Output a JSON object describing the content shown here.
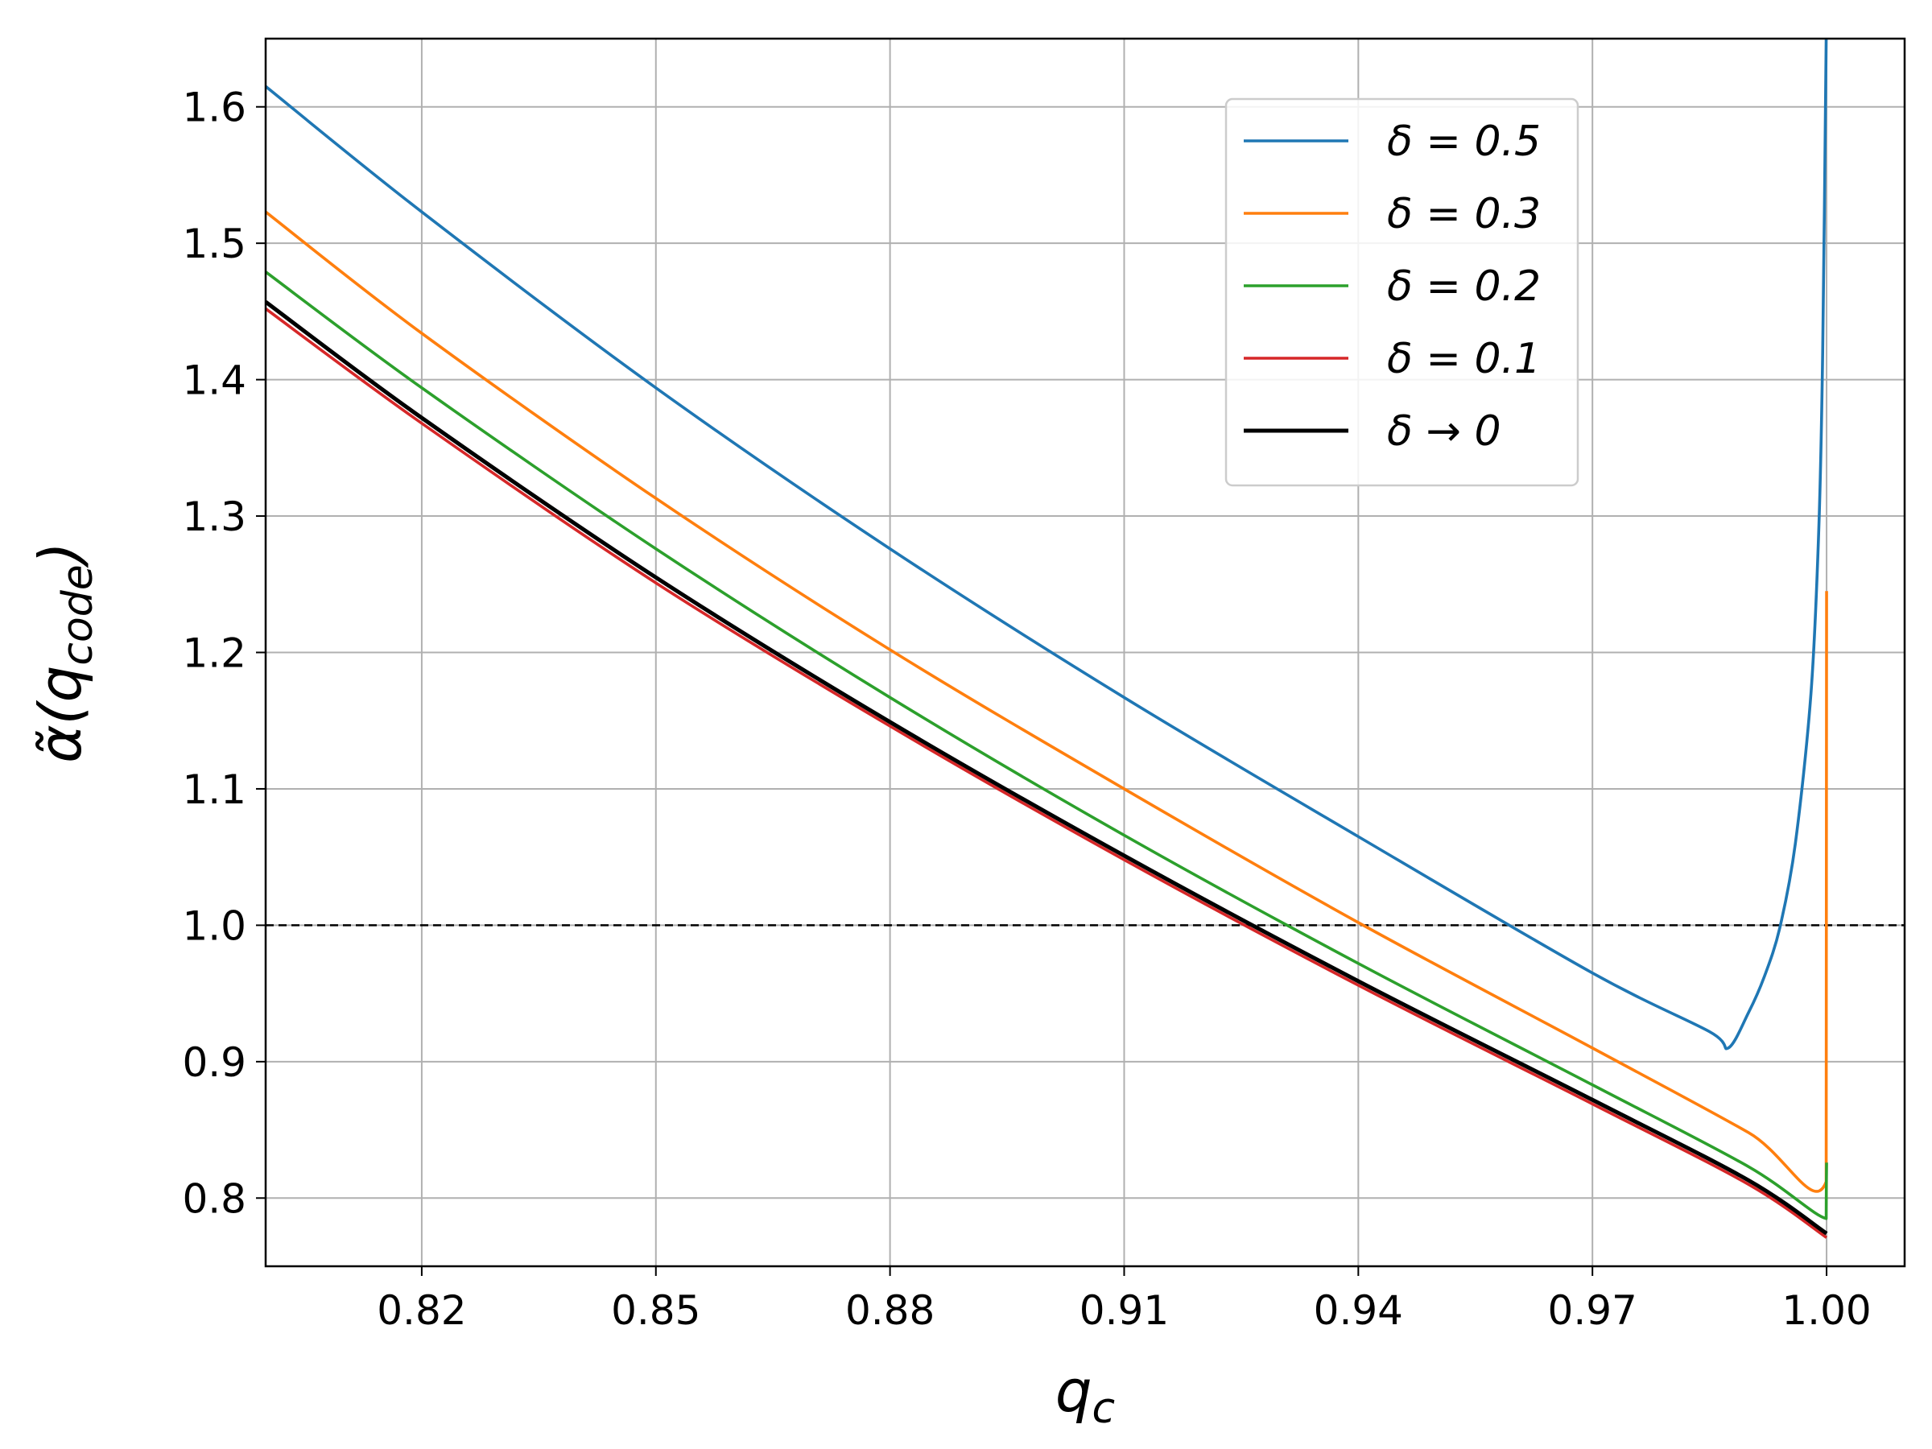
{
  "chart_data": {
    "type": "line",
    "title": "",
    "xlabel": "q_c",
    "ylabel": "α̃(q_code)",
    "xlim": [
      0.8,
      1.01
    ],
    "ylim": [
      0.75,
      1.65
    ],
    "xticks": [
      0.82,
      0.85,
      0.88,
      0.91,
      0.94,
      0.97,
      1.0
    ],
    "xtick_labels": [
      "0.82",
      "0.85",
      "0.88",
      "0.91",
      "0.94",
      "0.97",
      "1.00"
    ],
    "yticks": [
      0.8,
      0.9,
      1.0,
      1.1,
      1.2,
      1.3,
      1.4,
      1.5,
      1.6
    ],
    "ytick_labels": [
      "0.8",
      "0.9",
      "1.0",
      "1.1",
      "1.2",
      "1.3",
      "1.4",
      "1.5",
      "1.6"
    ],
    "grid": true,
    "legend_position": "top-right",
    "reference_line": {
      "y": 1.0,
      "style": "dashed",
      "color": "#000000"
    },
    "series": [
      {
        "name": "δ = 0.5",
        "color": "#1f77b4",
        "x": [
          0.8,
          0.82,
          0.85,
          0.88,
          0.91,
          0.94,
          0.97,
          0.985,
          0.9874,
          0.99,
          0.992,
          0.994,
          0.996,
          0.998,
          0.999,
          0.9995,
          0.99995
        ],
        "y": [
          1.615,
          1.523,
          1.394,
          1.276,
          1.167,
          1.065,
          0.965,
          0.922,
          0.91,
          0.936,
          0.962,
          0.998,
          1.06,
          1.17,
          1.29,
          1.42,
          1.65
        ]
      },
      {
        "name": "δ = 0.3",
        "color": "#ff7f0e",
        "x": [
          0.8,
          0.82,
          0.85,
          0.88,
          0.91,
          0.94,
          0.97,
          0.99,
          0.99995,
          0.99997,
          1.0
        ],
        "y": [
          1.523,
          1.434,
          1.313,
          1.202,
          1.1,
          1.002,
          0.91,
          0.848,
          0.812,
          1.0,
          1.245
        ]
      },
      {
        "name": "δ = 0.2",
        "color": "#2ca02c",
        "x": [
          0.8,
          0.82,
          0.85,
          0.88,
          0.91,
          0.94,
          0.97,
          0.99,
          0.99995,
          0.99997,
          1.0
        ],
        "y": [
          1.479,
          1.394,
          1.276,
          1.167,
          1.066,
          0.972,
          0.883,
          0.823,
          0.785,
          0.81,
          0.826
        ]
      },
      {
        "name": "δ = 0.1",
        "color": "#d62728",
        "x": [
          0.8,
          0.82,
          0.85,
          0.88,
          0.91,
          0.94,
          0.97,
          0.99,
          1.0
        ],
        "y": [
          1.452,
          1.368,
          1.251,
          1.146,
          1.048,
          0.956,
          0.869,
          0.81,
          0.771
        ]
      },
      {
        "name": "δ → 0",
        "color": "#000000",
        "x": [
          0.8,
          0.82,
          0.85,
          0.88,
          0.91,
          0.94,
          0.97,
          0.99,
          1.0
        ],
        "y": [
          1.457,
          1.372,
          1.255,
          1.149,
          1.051,
          0.959,
          0.872,
          0.813,
          0.774
        ]
      }
    ]
  }
}
